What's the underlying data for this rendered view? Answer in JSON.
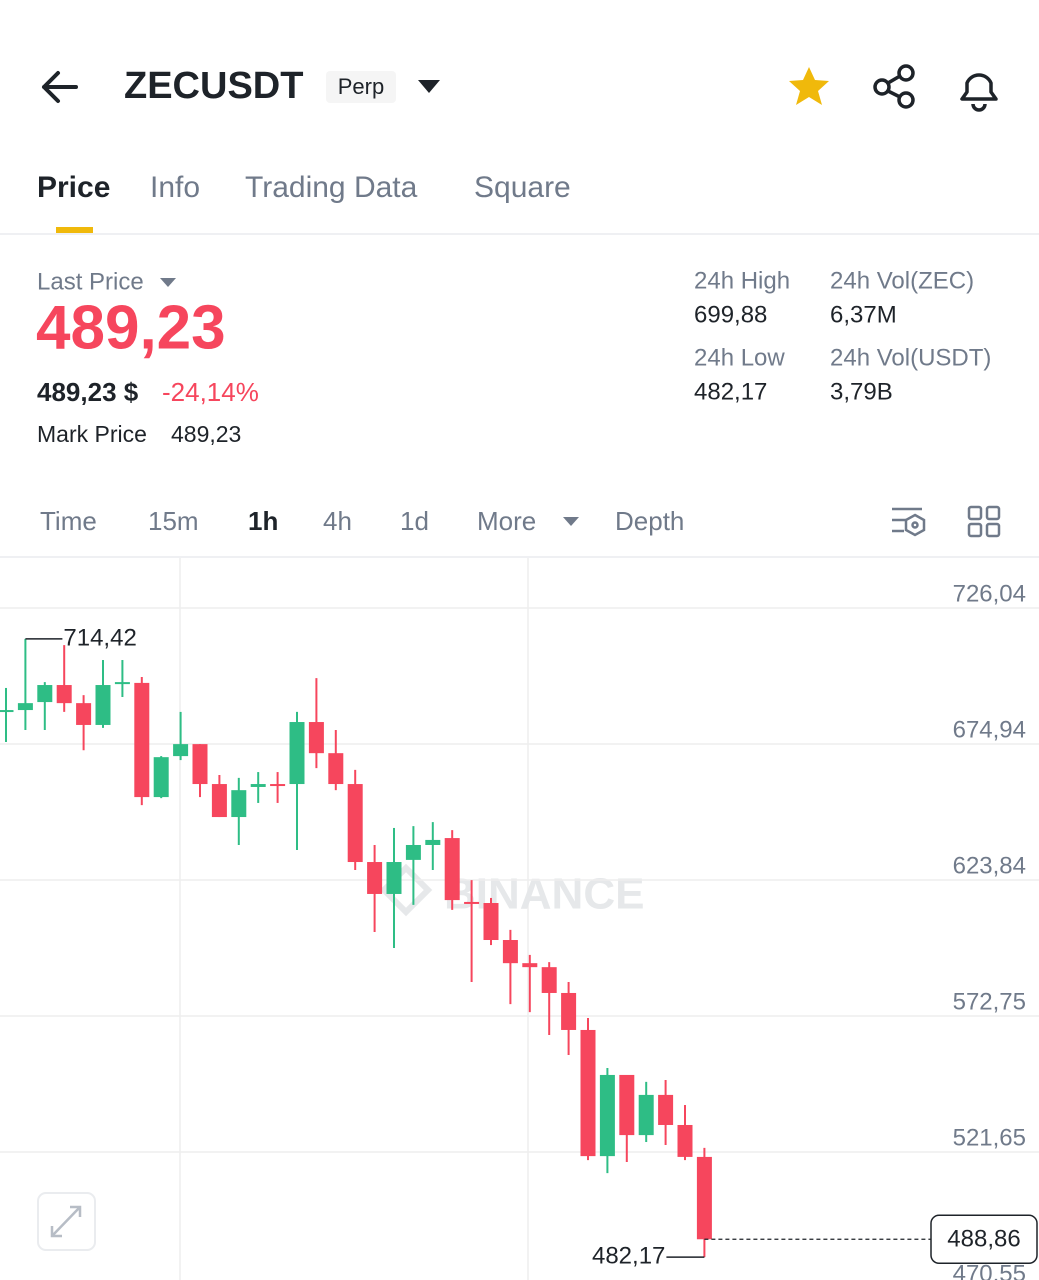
{
  "header": {
    "symbol": "ZECUSDT",
    "badge": "Perp"
  },
  "tabs": [
    "Price",
    "Info",
    "Trading Data",
    "Square"
  ],
  "ticker": {
    "last_price_label": "Last Price",
    "last_price": "489,23",
    "usd_price": "489,23 $",
    "change": "-24,14%",
    "mark_price_label": "Mark Price",
    "mark_price": "489,23"
  },
  "stats": [
    {
      "label": "24h High",
      "value": "699,88"
    },
    {
      "label": "24h Vol(ZEC)",
      "value": "6,37M"
    },
    {
      "label": "24h Low",
      "value": "482,17"
    },
    {
      "label": "24h Vol(USDT)",
      "value": "3,79B"
    }
  ],
  "intervals": [
    "Time",
    "15m",
    "1h",
    "4h",
    "1d",
    "More",
    "Depth"
  ],
  "chart_data": {
    "type": "candlestick",
    "watermark": "BINANCE",
    "up_color": "#2ebd85",
    "down_color": "#f6465d",
    "ylim": [
      470.55,
      744.83
    ],
    "yticks": [
      {
        "value": 726.04,
        "label": "726,04"
      },
      {
        "value": 674.94,
        "label": "674,94"
      },
      {
        "value": 623.84,
        "label": "623,84"
      },
      {
        "value": 572.75,
        "label": "572,75"
      },
      {
        "value": 521.65,
        "label": "521,65"
      },
      {
        "value": 470.55,
        "label": "470,55"
      }
    ],
    "candles": [
      {
        "open": 687.3,
        "high": 696.0,
        "low": 675.7,
        "close": 687.7
      },
      {
        "open": 687.7,
        "high": 714.42,
        "low": 680.2,
        "close": 690.3
      },
      {
        "open": 690.7,
        "high": 698.2,
        "low": 680.2,
        "close": 697.1
      },
      {
        "open": 697.1,
        "high": 712.1,
        "low": 687.0,
        "close": 690.3
      },
      {
        "open": 690.3,
        "high": 693.3,
        "low": 672.6,
        "close": 682.1
      },
      {
        "open": 682.1,
        "high": 706.5,
        "low": 681.0,
        "close": 697.1
      },
      {
        "open": 697.9,
        "high": 706.5,
        "low": 692.6,
        "close": 698.2
      },
      {
        "open": 697.9,
        "high": 700.1,
        "low": 652.0,
        "close": 655.0
      },
      {
        "open": 655.0,
        "high": 670.4,
        "low": 654.6,
        "close": 670.0
      },
      {
        "open": 670.4,
        "high": 687.0,
        "low": 668.9,
        "close": 674.9
      },
      {
        "open": 674.9,
        "high": 674.9,
        "low": 655.0,
        "close": 659.9
      },
      {
        "open": 659.9,
        "high": 663.3,
        "low": 647.5,
        "close": 647.5
      },
      {
        "open": 647.5,
        "high": 662.2,
        "low": 637.0,
        "close": 657.6
      },
      {
        "open": 658.8,
        "high": 664.4,
        "low": 652.8,
        "close": 659.9
      },
      {
        "open": 659.9,
        "high": 664.4,
        "low": 652.8,
        "close": 659.6
      },
      {
        "open": 659.9,
        "high": 687.0,
        "low": 635.1,
        "close": 683.2
      },
      {
        "open": 683.2,
        "high": 699.7,
        "low": 665.9,
        "close": 671.5
      },
      {
        "open": 671.5,
        "high": 680.2,
        "low": 657.6,
        "close": 659.9
      },
      {
        "open": 659.9,
        "high": 665.2,
        "low": 627.6,
        "close": 630.6
      },
      {
        "open": 630.6,
        "high": 637.0,
        "low": 604.3,
        "close": 618.6
      },
      {
        "open": 618.6,
        "high": 643.4,
        "low": 598.3,
        "close": 630.6
      },
      {
        "open": 631.4,
        "high": 644.1,
        "low": 614.5,
        "close": 637.0
      },
      {
        "open": 637.0,
        "high": 645.6,
        "low": 627.6,
        "close": 638.9
      },
      {
        "open": 639.6,
        "high": 642.6,
        "low": 612.6,
        "close": 616.3
      },
      {
        "open": 615.6,
        "high": 623.8,
        "low": 585.5,
        "close": 615.2
      },
      {
        "open": 615.2,
        "high": 617.1,
        "low": 599.4,
        "close": 601.3
      },
      {
        "open": 601.3,
        "high": 605.1,
        "low": 577.2,
        "close": 592.6
      },
      {
        "open": 592.6,
        "high": 595.7,
        "low": 574.2,
        "close": 591.1
      },
      {
        "open": 591.1,
        "high": 593.0,
        "low": 565.6,
        "close": 581.4
      },
      {
        "open": 581.4,
        "high": 585.5,
        "low": 558.1,
        "close": 567.5
      },
      {
        "open": 567.5,
        "high": 572.0,
        "low": 518.6,
        "close": 520.1
      },
      {
        "open": 520.1,
        "high": 553.2,
        "low": 513.7,
        "close": 550.6
      },
      {
        "open": 550.6,
        "high": 550.6,
        "low": 517.9,
        "close": 528.0
      },
      {
        "open": 528.0,
        "high": 548.0,
        "low": 525.4,
        "close": 543.1
      },
      {
        "open": 543.1,
        "high": 548.7,
        "low": 524.3,
        "close": 531.8
      },
      {
        "open": 531.8,
        "high": 539.3,
        "low": 518.6,
        "close": 519.8
      },
      {
        "open": 519.8,
        "high": 523.2,
        "low": 482.17,
        "close": 488.86
      }
    ],
    "high_marker": {
      "value": 714.42,
      "label": "714,42"
    },
    "low_marker": {
      "value": 482.17,
      "label": "482,17"
    },
    "last_price": {
      "value": 488.86,
      "label": "488,86"
    }
  }
}
